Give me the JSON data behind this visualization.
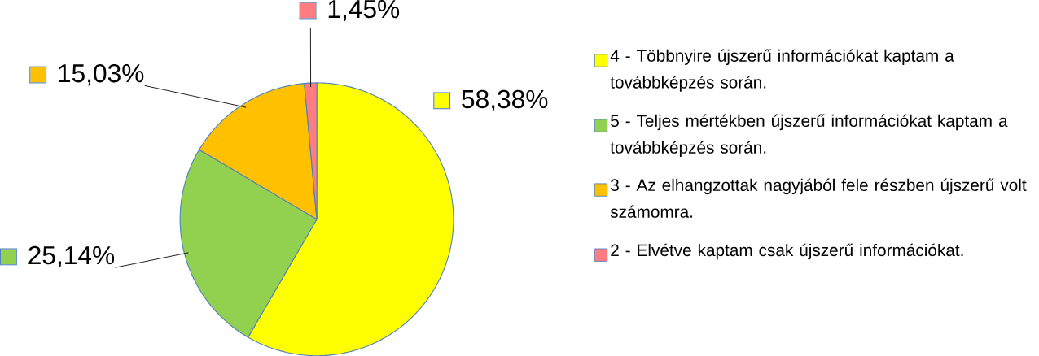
{
  "chart_data": {
    "type": "pie",
    "categories": [
      "4 - Többnyire újszerű információkat kaptam a továbbképzés során.",
      "5 - Teljes mértékben újszerű információkat kaptam a továbbképzés során.",
      "3 - Az elhangzottak nagyjából fele részben újszerű volt számomra.",
      "2 - Elvétve kaptam csak újszerű információkat."
    ],
    "values": [
      58.38,
      25.14,
      15.03,
      1.45
    ],
    "colors": [
      "#ffff00",
      "#92d050",
      "#ffc000",
      "#ff7c80"
    ],
    "value_labels": [
      "58,38%",
      "25,14%",
      "15,03%",
      "1,45%"
    ],
    "legend": "right"
  }
}
